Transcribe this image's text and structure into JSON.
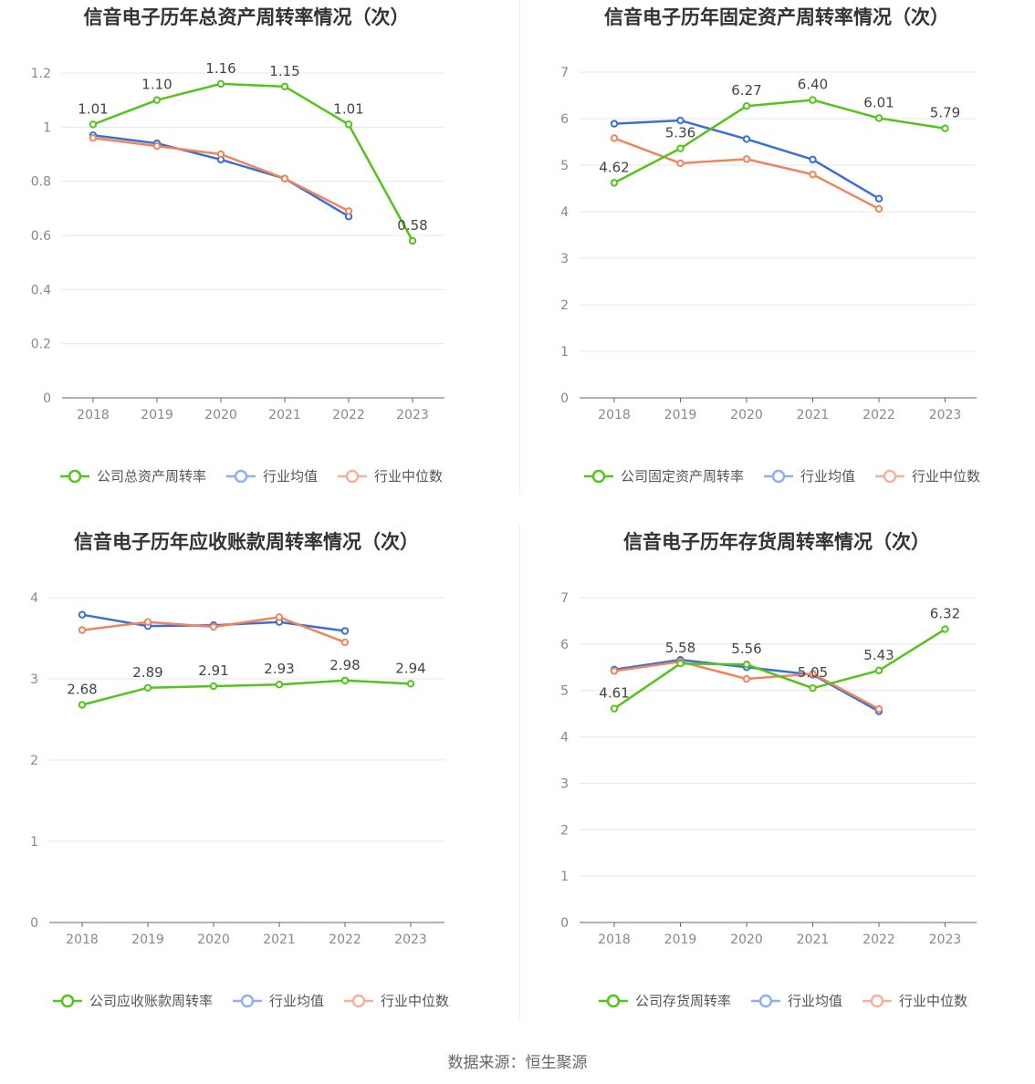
{
  "colors": {
    "company": "#52c41a",
    "avg": "#3a6fd8",
    "median": "#f0845c",
    "avg_legend": "#8fb0ec",
    "median_legend": "#f5b29a"
  },
  "legend_common": {
    "avg": "行业均值",
    "median": "行业中位数"
  },
  "source": "数据来源：恒生聚源",
  "chart_data": [
    {
      "type": "line",
      "title": "信音电子历年总资产周转率情况（次）",
      "categories": [
        "2018",
        "2019",
        "2020",
        "2021",
        "2022",
        "2023"
      ],
      "ylim": [
        0,
        1.2
      ],
      "yticks": [
        0,
        0.2,
        0.4,
        0.6,
        0.8,
        1,
        1.2
      ],
      "ytick_labels": [
        "0",
        "0.2",
        "0.4",
        "0.6",
        "0.8",
        "1",
        "1.2"
      ],
      "series": [
        {
          "name": "公司总资产周转率",
          "values": [
            1.01,
            1.1,
            1.16,
            1.15,
            1.01,
            0.58
          ],
          "labels": [
            "1.01",
            "1.10",
            "1.16",
            "1.15",
            "1.01",
            "0.58"
          ]
        },
        {
          "name": "行业均值",
          "values": [
            0.97,
            0.94,
            0.88,
            0.81,
            0.67,
            null
          ]
        },
        {
          "name": "行业中位数",
          "values": [
            0.96,
            0.93,
            0.9,
            0.81,
            0.69,
            null
          ]
        }
      ]
    },
    {
      "type": "line",
      "title": "信音电子历年固定资产周转率情况（次）",
      "categories": [
        "2018",
        "2019",
        "2020",
        "2021",
        "2022",
        "2023"
      ],
      "ylim": [
        0,
        7
      ],
      "yticks": [
        0,
        1,
        2,
        3,
        4,
        5,
        6,
        7
      ],
      "ytick_labels": [
        "0",
        "1",
        "2",
        "3",
        "4",
        "5",
        "6",
        "7"
      ],
      "series": [
        {
          "name": "公司固定资产周转率",
          "values": [
            4.62,
            5.36,
            6.27,
            6.4,
            6.01,
            5.79
          ],
          "labels": [
            "4.62",
            "5.36",
            "6.27",
            "6.40",
            "6.01",
            "5.79"
          ]
        },
        {
          "name": "行业均值",
          "values": [
            5.89,
            5.96,
            5.56,
            5.12,
            4.28,
            null
          ]
        },
        {
          "name": "行业中位数",
          "values": [
            5.58,
            5.04,
            5.13,
            4.8,
            4.06,
            null
          ]
        }
      ]
    },
    {
      "type": "line",
      "title": "信音电子历年应收账款周转率情况（次）",
      "categories": [
        "2018",
        "2019",
        "2020",
        "2021",
        "2022",
        "2023"
      ],
      "ylim": [
        0,
        4
      ],
      "yticks": [
        0,
        1,
        2,
        3,
        4
      ],
      "ytick_labels": [
        "0",
        "1",
        "2",
        "3",
        "4"
      ],
      "series": [
        {
          "name": "公司应收账款周转率",
          "values": [
            2.68,
            2.89,
            2.91,
            2.93,
            2.98,
            2.94
          ],
          "labels": [
            "2.68",
            "2.89",
            "2.91",
            "2.93",
            "2.98",
            "2.94"
          ]
        },
        {
          "name": "行业均值",
          "values": [
            3.79,
            3.65,
            3.66,
            3.7,
            3.59,
            null
          ]
        },
        {
          "name": "行业中位数",
          "values": [
            3.6,
            3.7,
            3.64,
            3.76,
            3.45,
            null
          ]
        }
      ]
    },
    {
      "type": "line",
      "title": "信音电子历年存货周转率情况（次）",
      "categories": [
        "2018",
        "2019",
        "2020",
        "2021",
        "2022",
        "2023"
      ],
      "ylim": [
        0,
        7
      ],
      "yticks": [
        0,
        1,
        2,
        3,
        4,
        5,
        6,
        7
      ],
      "ytick_labels": [
        "0",
        "1",
        "2",
        "3",
        "4",
        "5",
        "6",
        "7"
      ],
      "series": [
        {
          "name": "公司存货周转率",
          "values": [
            4.61,
            5.58,
            5.56,
            5.05,
            5.43,
            6.32
          ],
          "labels": [
            "4.61",
            "5.58",
            "5.56",
            "5.05",
            "5.43",
            "6.32"
          ]
        },
        {
          "name": "行业均值",
          "values": [
            5.45,
            5.66,
            5.5,
            5.34,
            4.55,
            null
          ]
        },
        {
          "name": "行业中位数",
          "values": [
            5.42,
            5.62,
            5.25,
            5.36,
            4.6,
            null
          ]
        }
      ]
    }
  ]
}
